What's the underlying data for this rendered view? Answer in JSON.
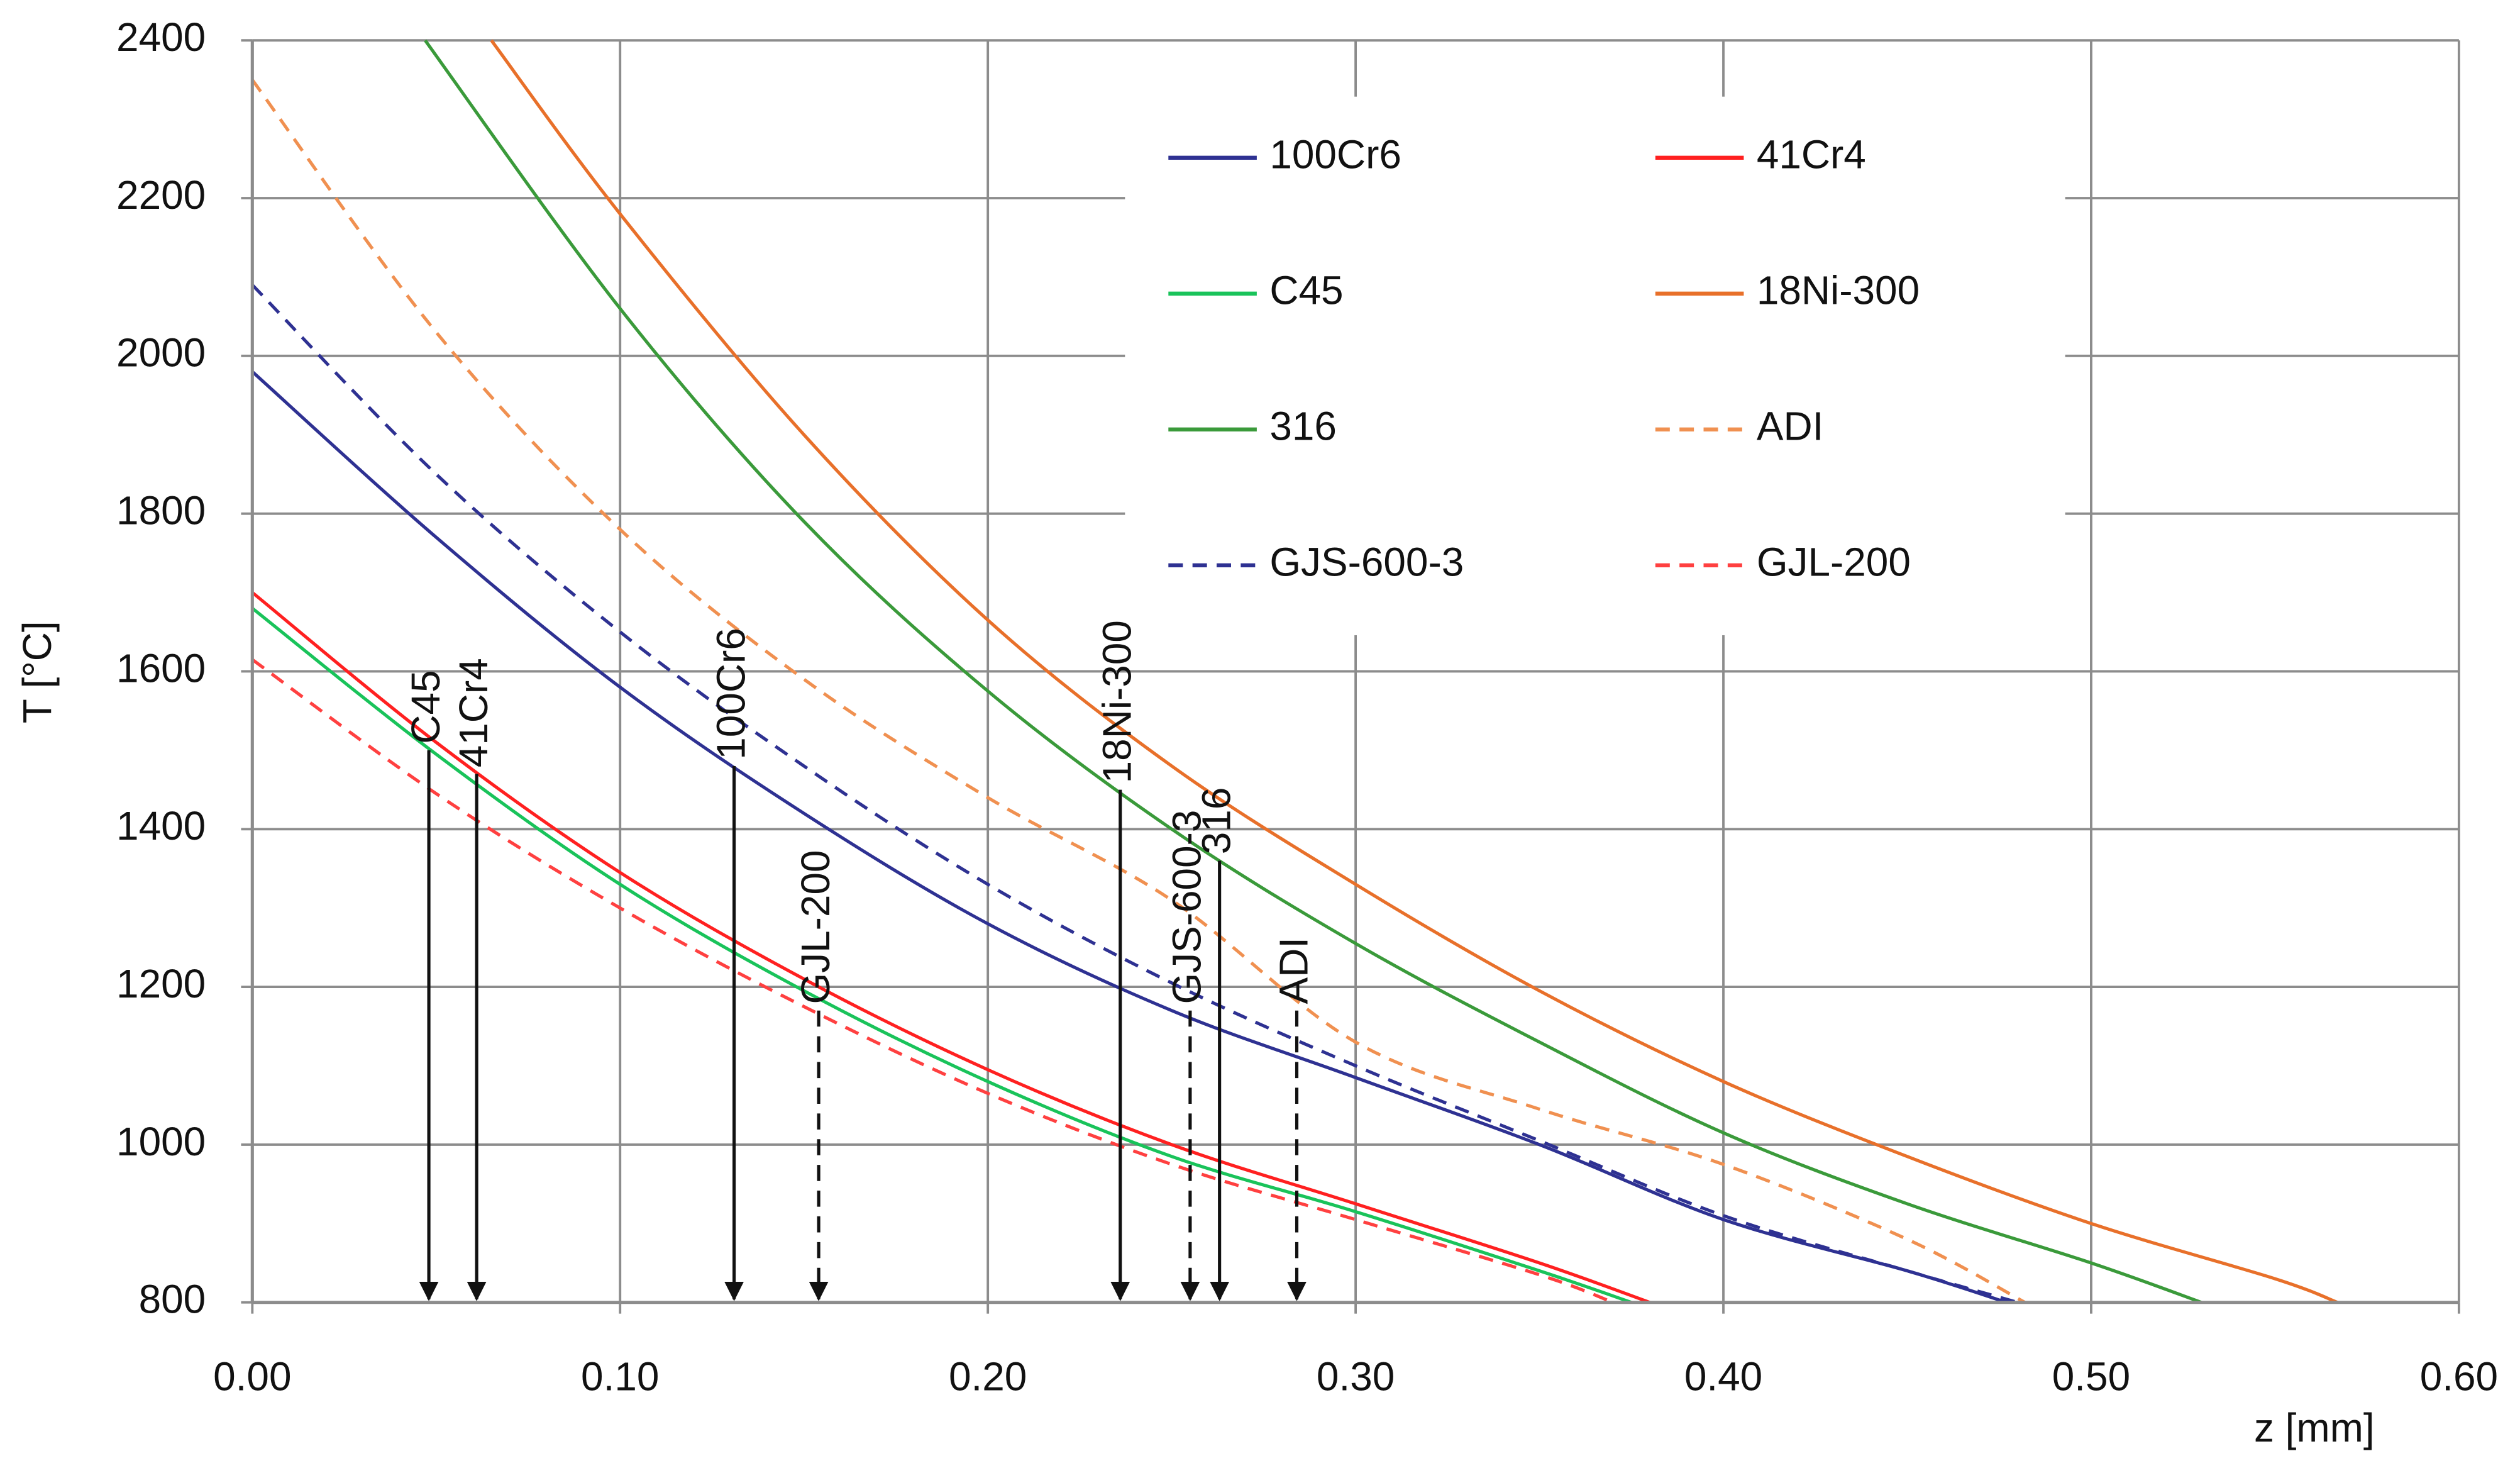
{
  "chart_data": {
    "type": "line",
    "xlabel": "z [mm]",
    "ylabel": "T [°C]",
    "xlim": [
      0,
      0.6
    ],
    "ylim": [
      800,
      2400
    ],
    "xticks": [
      {
        "value": 0,
        "label": "0.00"
      },
      {
        "value": 0.1,
        "label": "0.10"
      },
      {
        "value": 0.2,
        "label": "0.20"
      },
      {
        "value": 0.3,
        "label": "0.30"
      },
      {
        "value": 0.4,
        "label": "0.40"
      },
      {
        "value": 0.5,
        "label": "0.50"
      },
      {
        "value": 0.6,
        "label": "0.60"
      }
    ],
    "yticks": [
      800,
      1000,
      1200,
      1400,
      1600,
      1800,
      2000,
      2200,
      2400
    ],
    "grid": true,
    "series": [
      {
        "name": "100Cr6",
        "color": "#2e3192",
        "dashed": false,
        "x": [
          0,
          0.05,
          0.1,
          0.15,
          0.2,
          0.25,
          0.3,
          0.35,
          0.4,
          0.45,
          0.477
        ],
        "values": [
          1980,
          1770,
          1580,
          1420,
          1280,
          1170,
          1085,
          1000,
          905,
          840,
          800
        ]
      },
      {
        "name": "41Cr4",
        "color": "#ff2020",
        "dashed": false,
        "x": [
          0,
          0.05,
          0.1,
          0.15,
          0.2,
          0.25,
          0.3,
          0.35,
          0.38
        ],
        "values": [
          1700,
          1510,
          1345,
          1210,
          1095,
          1000,
          925,
          850,
          800
        ]
      },
      {
        "name": "C45",
        "color": "#19c35a",
        "dashed": false,
        "x": [
          0,
          0.05,
          0.1,
          0.15,
          0.2,
          0.25,
          0.3,
          0.35,
          0.375
        ],
        "values": [
          1680,
          1495,
          1330,
          1195,
          1080,
          985,
          915,
          840,
          800
        ]
      },
      {
        "name": "18Ni-300",
        "color": "#e8702a",
        "dashed": false,
        "x": [
          0.065,
          0.1,
          0.15,
          0.2,
          0.25,
          0.3,
          0.35,
          0.4,
          0.45,
          0.5,
          0.55,
          0.567
        ],
        "values": [
          2400,
          2180,
          1900,
          1665,
          1480,
          1330,
          1195,
          1080,
          985,
          900,
          830,
          800
        ]
      },
      {
        "name": "316",
        "color": "#3a9a3a",
        "dashed": false,
        "x": [
          0.047,
          0.1,
          0.15,
          0.2,
          0.25,
          0.3,
          0.35,
          0.4,
          0.45,
          0.5,
          0.53
        ],
        "values": [
          2400,
          2060,
          1790,
          1575,
          1400,
          1255,
          1130,
          1015,
          925,
          850,
          800
        ]
      },
      {
        "name": "ADI",
        "color": "#f09050",
        "dashed": true,
        "x": [
          0,
          0.05,
          0.1,
          0.15,
          0.2,
          0.25,
          0.3,
          0.35,
          0.4,
          0.45,
          0.482
        ],
        "values": [
          2350,
          2030,
          1780,
          1590,
          1440,
          1310,
          1130,
          1045,
          975,
          880,
          800
        ]
      },
      {
        "name": "GJS-600-3",
        "color": "#2e3192",
        "dashed": true,
        "x": [
          0,
          0.05,
          0.1,
          0.15,
          0.2,
          0.25,
          0.3,
          0.35,
          0.4,
          0.45,
          0.48
        ],
        "values": [
          2090,
          1850,
          1650,
          1480,
          1330,
          1205,
          1100,
          1005,
          910,
          840,
          800
        ]
      },
      {
        "name": "GJL-200",
        "color": "#ff4040",
        "dashed": true,
        "x": [
          0,
          0.05,
          0.1,
          0.15,
          0.2,
          0.25,
          0.3,
          0.35,
          0.37
        ],
        "values": [
          1615,
          1445,
          1300,
          1175,
          1065,
          975,
          905,
          835,
          800
        ]
      }
    ],
    "annotations": [
      {
        "text": "C45",
        "x": 0.048,
        "y": 1500,
        "dashed": false
      },
      {
        "text": "41Cr4",
        "x": 0.061,
        "y": 1470,
        "dashed": false
      },
      {
        "text": "100Cr6",
        "x": 0.131,
        "y": 1480,
        "dashed": false
      },
      {
        "text": "GJL-200",
        "x": 0.154,
        "y": 1170,
        "dashed": true
      },
      {
        "text": "18Ni-300",
        "x": 0.236,
        "y": 1450,
        "dashed": false
      },
      {
        "text": "GJS-600-3",
        "x": 0.255,
        "y": 1170,
        "dashed": true
      },
      {
        "text": "316",
        "x": 0.263,
        "y": 1360,
        "dashed": false
      },
      {
        "text": "ADI",
        "x": 0.284,
        "y": 1170,
        "dashed": true
      }
    ]
  }
}
